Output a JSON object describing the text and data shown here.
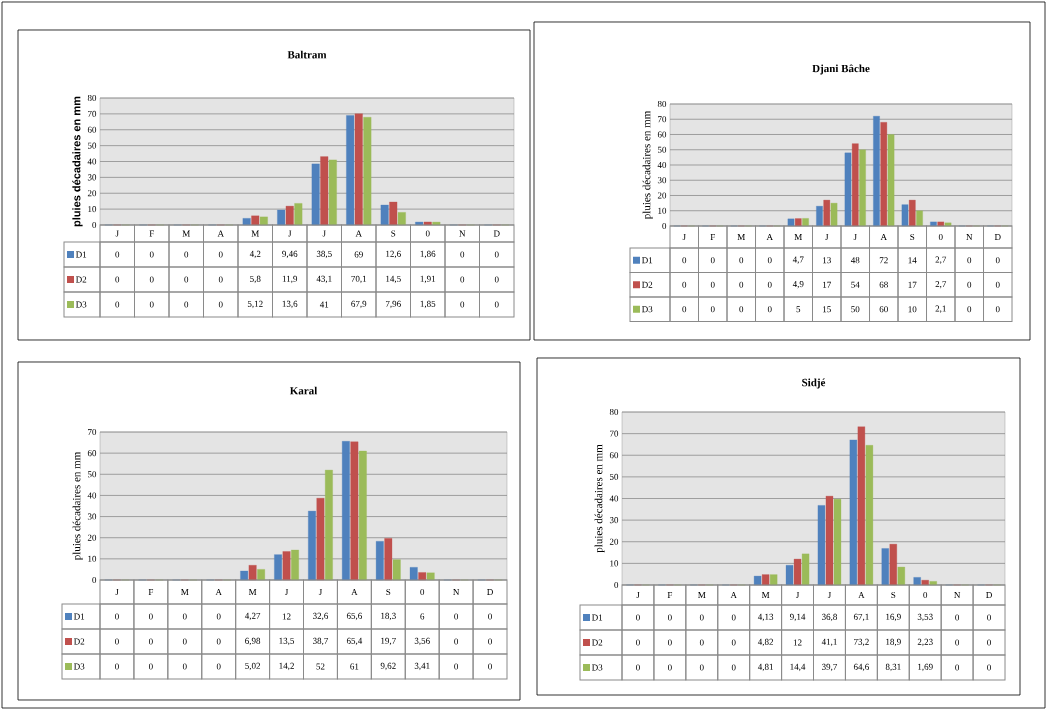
{
  "chart_data": [
    {
      "type": "bar",
      "title": "Baltram",
      "ylabel": "pluies décadaires en mm",
      "categories": [
        "J",
        "F",
        "M",
        "A",
        "M",
        "J",
        "J",
        "A",
        "S",
        "0",
        "N",
        "D"
      ],
      "ylim": [
        0,
        80
      ],
      "yticks": [
        0,
        10,
        20,
        30,
        40,
        50,
        60,
        70,
        80
      ],
      "grid": "y",
      "legend": "bottom",
      "series": [
        {
          "name": "D1",
          "color": "#4f81bd",
          "values": [
            0,
            0,
            0,
            0,
            4.2,
            9.46,
            38.5,
            69,
            12.6,
            1.86,
            0,
            0
          ],
          "value_labels": [
            "0",
            "0",
            "0",
            "0",
            "4,2",
            "9,46",
            "38,5",
            "69",
            "12,6",
            "1,86",
            "0",
            "0"
          ]
        },
        {
          "name": "D2",
          "color": "#c0504d",
          "values": [
            0,
            0,
            0,
            0,
            5.8,
            11.9,
            43.1,
            70.1,
            14.5,
            1.91,
            0,
            0
          ],
          "value_labels": [
            "0",
            "0",
            "0",
            "0",
            "5,8",
            "11,9",
            "43,1",
            "70,1",
            "14,5",
            "1,91",
            "0",
            "0"
          ]
        },
        {
          "name": "D3",
          "color": "#9bbb59",
          "values": [
            0,
            0,
            0,
            0,
            5.12,
            13.6,
            41,
            67.9,
            7.96,
            1.85,
            0,
            0
          ],
          "value_labels": [
            "0",
            "0",
            "0",
            "0",
            "5,12",
            "13,6",
            "41",
            "67,9",
            "7,96",
            "1,85",
            "0",
            "0"
          ]
        }
      ]
    },
    {
      "type": "bar",
      "title": "Djani Bâche",
      "ylabel": "pluies décadaires en mm",
      "categories": [
        "J",
        "F",
        "M",
        "A",
        "M",
        "J",
        "J",
        "A",
        "S",
        "0",
        "N",
        "D"
      ],
      "ylim": [
        0,
        80
      ],
      "yticks": [
        0,
        10,
        20,
        30,
        40,
        50,
        60,
        70,
        80
      ],
      "grid": "y",
      "legend": "bottom",
      "series": [
        {
          "name": "D1",
          "color": "#4f81bd",
          "values": [
            0,
            0,
            0,
            0,
            4.7,
            13,
            48,
            72,
            14,
            2.7,
            0,
            0
          ],
          "value_labels": [
            "0",
            "0",
            "0",
            "0",
            "4,7",
            "13",
            "48",
            "72",
            "14",
            "2,7",
            "0",
            "0"
          ]
        },
        {
          "name": "D2",
          "color": "#c0504d",
          "values": [
            0,
            0,
            0,
            0,
            4.9,
            17,
            54,
            68,
            17,
            2.7,
            0,
            0
          ],
          "value_labels": [
            "0",
            "0",
            "0",
            "0",
            "4,9",
            "17",
            "54",
            "68",
            "17",
            "2,7",
            "0",
            "0"
          ]
        },
        {
          "name": "D3",
          "color": "#9bbb59",
          "values": [
            0,
            0,
            0,
            0,
            5,
            15,
            50,
            60,
            10,
            2.1,
            0,
            0
          ],
          "value_labels": [
            "0",
            "0",
            "0",
            "0",
            "5",
            "15",
            "50",
            "60",
            "10",
            "2,1",
            "0",
            "0"
          ]
        }
      ]
    },
    {
      "type": "bar",
      "title": "Karal",
      "ylabel": "pluies décadaires en mm",
      "categories": [
        "J",
        "F",
        "M",
        "A",
        "M",
        "J",
        "J",
        "A",
        "S",
        "0",
        "N",
        "D"
      ],
      "ylim": [
        0,
        70
      ],
      "yticks": [
        0,
        10,
        20,
        30,
        40,
        50,
        60,
        70
      ],
      "grid": "y",
      "legend": "bottom",
      "series": [
        {
          "name": "D1",
          "color": "#4f81bd",
          "values": [
            0,
            0,
            0,
            0,
            4.27,
            12,
            32.6,
            65.6,
            18.3,
            6,
            0,
            0
          ],
          "value_labels": [
            "0",
            "0",
            "0",
            "0",
            "4,27",
            "12",
            "32,6",
            "65,6",
            "18,3",
            "6",
            "0",
            "0"
          ]
        },
        {
          "name": "D2",
          "color": "#c0504d",
          "values": [
            0,
            0,
            0,
            0,
            6.98,
            13.5,
            38.7,
            65.4,
            19.7,
            3.56,
            0,
            0
          ],
          "value_labels": [
            "0",
            "0",
            "0",
            "0",
            "6,98",
            "13,5",
            "38,7",
            "65,4",
            "19,7",
            "3,56",
            "0",
            "0"
          ]
        },
        {
          "name": "D3",
          "color": "#9bbb59",
          "values": [
            0,
            0,
            0,
            0,
            5.02,
            14.2,
            52,
            61,
            9.62,
            3.41,
            0,
            0
          ],
          "value_labels": [
            "0",
            "0",
            "0",
            "0",
            "5,02",
            "14,2",
            "52",
            "61",
            "9,62",
            "3,41",
            "0",
            "0"
          ]
        }
      ]
    },
    {
      "type": "bar",
      "title": "Sidjé",
      "ylabel": "pluies décadaires en mm",
      "categories": [
        "J",
        "F",
        "M",
        "A",
        "M",
        "J",
        "J",
        "A",
        "S",
        "0",
        "N",
        "D"
      ],
      "ylim": [
        0,
        80
      ],
      "yticks": [
        0,
        10,
        20,
        30,
        40,
        50,
        60,
        70,
        80
      ],
      "grid": "y",
      "legend": "bottom",
      "series": [
        {
          "name": "D1",
          "color": "#4f81bd",
          "values": [
            0,
            0,
            0,
            0,
            4.13,
            9.14,
            36.8,
            67.1,
            16.9,
            3.53,
            0,
            0
          ],
          "value_labels": [
            "0",
            "0",
            "0",
            "0",
            "4,13",
            "9,14",
            "36,8",
            "67,1",
            "16,9",
            "3,53",
            "0",
            "0"
          ]
        },
        {
          "name": "D2",
          "color": "#c0504d",
          "values": [
            0,
            0,
            0,
            0,
            4.82,
            12,
            41.1,
            73.2,
            18.9,
            2.23,
            0,
            0
          ],
          "value_labels": [
            "0",
            "0",
            "0",
            "0",
            "4,82",
            "12",
            "41,1",
            "73,2",
            "18,9",
            "2,23",
            "0",
            "0"
          ]
        },
        {
          "name": "D3",
          "color": "#9bbb59",
          "values": [
            0,
            0,
            0,
            0,
            4.81,
            14.4,
            39.7,
            64.6,
            8.31,
            1.69,
            0,
            0
          ],
          "value_labels": [
            "0",
            "0",
            "0",
            "0",
            "4,81",
            "14,4",
            "39,7",
            "64,6",
            "8,31",
            "1,69",
            "0",
            "0"
          ]
        }
      ]
    }
  ]
}
